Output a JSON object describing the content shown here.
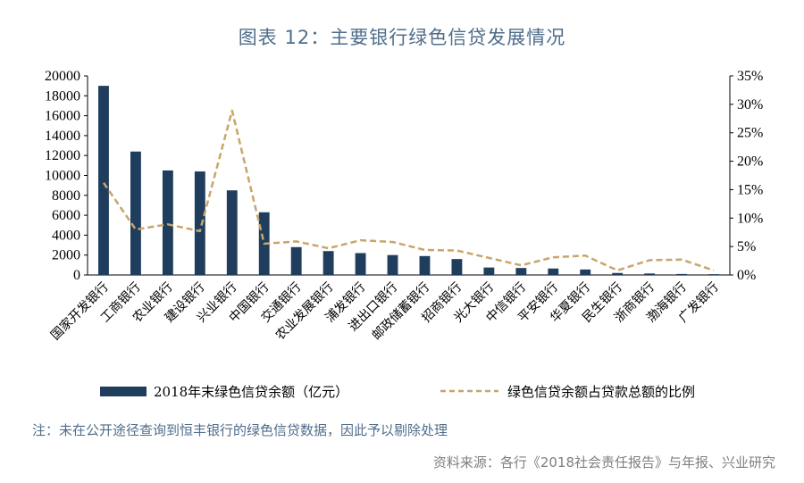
{
  "chart_data": {
    "type": "bar",
    "title": "图表 12：主要银行绿色信贷发展情况",
    "categories": [
      "国家开发银行",
      "工商银行",
      "农业银行",
      "建设银行",
      "兴业银行",
      "中国银行",
      "交通银行",
      "农业发展银行",
      "浦发银行",
      "进出口银行",
      "邮政储蓄银行",
      "招商银行",
      "光大银行",
      "中信银行",
      "平安银行",
      "华夏银行",
      "民生银行",
      "浙商银行",
      "渤海银行",
      "广发银行"
    ],
    "series": [
      {
        "name": "2018年末绿色信贷余额（亿元）",
        "type": "bar",
        "axis": "left",
        "color": "#1f3d5c",
        "values": [
          19000,
          12400,
          10500,
          10400,
          8500,
          6300,
          2800,
          2400,
          2200,
          2000,
          1900,
          1600,
          750,
          700,
          650,
          550,
          200,
          150,
          100,
          80
        ]
      },
      {
        "name": "绿色信贷余额占贷款总额的比例",
        "type": "line",
        "axis": "right",
        "color": "#c8a56a",
        "dash": "dashed",
        "values": [
          16.2,
          8.0,
          8.9,
          7.7,
          28.9,
          5.5,
          5.9,
          4.7,
          6.1,
          5.8,
          4.4,
          4.3,
          3.0,
          1.7,
          3.1,
          3.4,
          0.8,
          2.6,
          2.7,
          0.8
        ]
      }
    ],
    "ylim_left": [
      0,
      20000
    ],
    "yticks_left": [
      "0",
      "2000",
      "4000",
      "6000",
      "8000",
      "10000",
      "12000",
      "14000",
      "16000",
      "18000",
      "20000"
    ],
    "ylim_right": [
      0,
      35
    ],
    "yticks_right": [
      "0%",
      "5%",
      "10%",
      "15%",
      "20%",
      "25%",
      "30%",
      "35%"
    ],
    "legend_position": "bottom"
  },
  "note": "注：未在公开途径查询到恒丰银行的绿色信贷数据，因此予以剔除处理",
  "source": "资料来源：各行《2018社会责任报告》与年报、兴业研究"
}
